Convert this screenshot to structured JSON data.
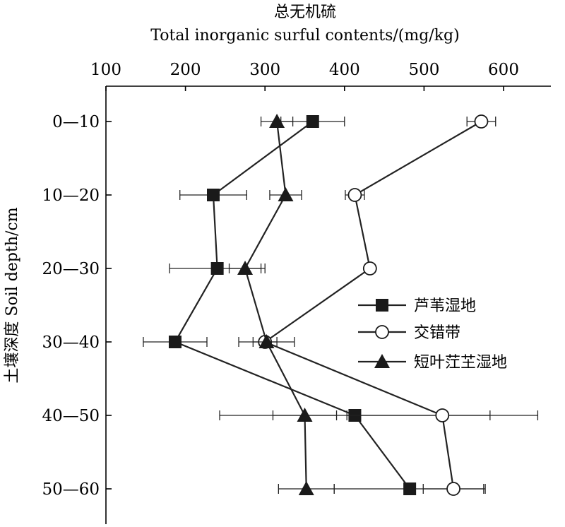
{
  "chart_data": {
    "type": "line",
    "orientation": "depth-profile",
    "title": "总无机硫",
    "subtitle": "Total inorganic surful contents/(mg/kg)",
    "ylabel": "土壤深度 Soil depth/cm",
    "xlim": [
      100,
      660
    ],
    "xticks": [
      "100",
      "200",
      "300",
      "400",
      "500",
      "600"
    ],
    "categories": [
      "0—10",
      "10—20",
      "20—30",
      "30—40",
      "40—50",
      "50—60"
    ],
    "legend_position": "right-middle",
    "grid": false,
    "series": [
      {
        "name": "芦苇湿地",
        "marker": "filled-square",
        "values": [
          360,
          235,
          240,
          187,
          413,
          482
        ],
        "errors": [
          40,
          42,
          60,
          40,
          170,
          95
        ]
      },
      {
        "name": "交错带",
        "marker": "open-circle",
        "values": [
          572,
          413,
          432,
          300,
          523,
          537
        ],
        "errors": [
          18,
          12,
          6,
          15,
          120,
          38
        ]
      },
      {
        "name": "短叶茳芏湿地",
        "marker": "filled-triangle",
        "values": [
          315,
          326,
          275,
          302,
          350,
          352
        ],
        "errors": [
          20,
          20,
          20,
          35,
          40,
          35
        ]
      }
    ]
  }
}
